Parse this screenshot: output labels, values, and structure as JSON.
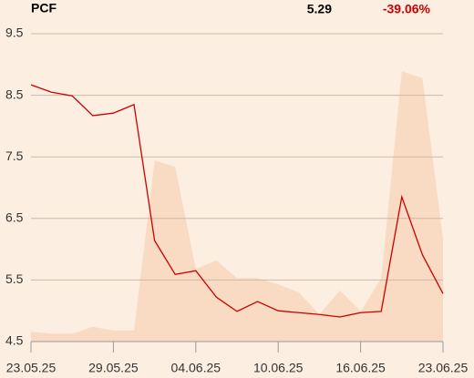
{
  "chart_data": {
    "type": "line",
    "title": "PCF",
    "last_price": 5.29,
    "change": "-39.06%",
    "categories": [
      "23.05.25",
      null,
      null,
      null,
      "29.05.25",
      null,
      null,
      null,
      "04.06.25",
      null,
      null,
      null,
      "10.06.25",
      null,
      null,
      null,
      "16.06.25",
      null,
      null,
      null,
      "23.06.25"
    ],
    "series": [
      {
        "type": "area",
        "color": "#f9dbc3",
        "values": [
          4.66,
          4.63,
          4.63,
          4.74,
          4.68,
          4.68,
          7.44,
          7.34,
          5.68,
          5.82,
          5.53,
          5.53,
          5.43,
          5.3,
          4.94,
          5.33,
          4.99,
          5.53,
          8.89,
          8.78,
          6.17
        ]
      },
      {
        "type": "line",
        "color": "#cc0000",
        "values": [
          8.67,
          8.55,
          8.49,
          8.17,
          8.21,
          8.35,
          6.14,
          5.59,
          5.65,
          5.22,
          4.99,
          5.15,
          5.0,
          4.97,
          4.94,
          4.9,
          4.97,
          4.99,
          6.85,
          5.91,
          5.28
        ]
      }
    ],
    "ylim": [
      4.5,
      9.5
    ],
    "yticks": [
      4.5,
      5.5,
      6.5,
      7.5,
      8.5,
      9.5
    ],
    "grid": true
  }
}
